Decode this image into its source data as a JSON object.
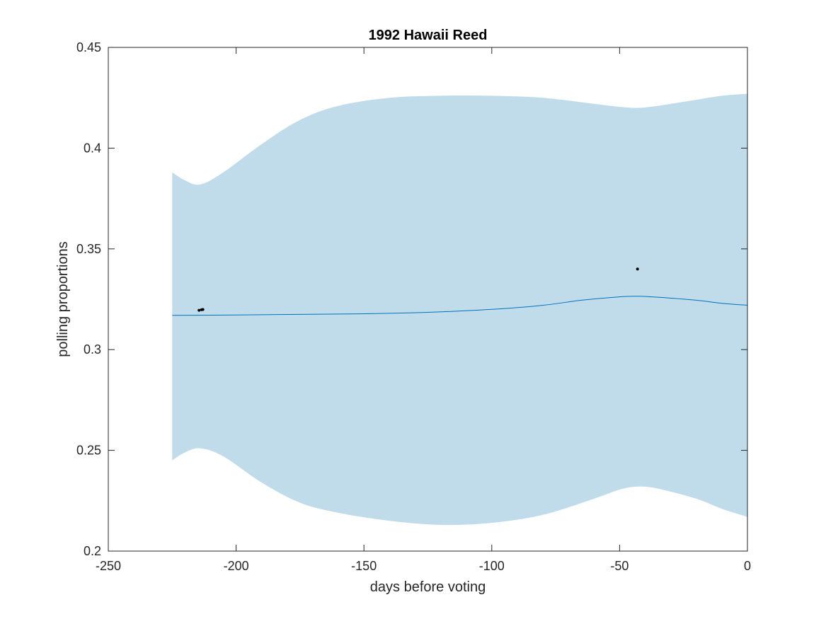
{
  "chart_data": {
    "type": "line",
    "title": "1992 Hawaii Reed",
    "xlabel": "days before voting",
    "ylabel": "polling proportions",
    "xlim": [
      -250,
      0
    ],
    "ylim": [
      0.2,
      0.45
    ],
    "xticks": [
      -250,
      -200,
      -150,
      -100,
      -50,
      0
    ],
    "yticks": [
      0.2,
      0.25,
      0.3,
      0.35,
      0.4,
      0.45
    ],
    "xtick_labels": [
      "-250",
      "-200",
      "-150",
      "-100",
      "-50",
      "0"
    ],
    "ytick_labels": [
      "0.2",
      "0.25",
      "0.3",
      "0.35",
      "0.4",
      "0.45"
    ],
    "grid": false,
    "band": {
      "x": [
        -225,
        -220,
        -214,
        -205,
        -190,
        -175,
        -160,
        -140,
        -120,
        -100,
        -80,
        -60,
        -50,
        -43,
        -35,
        -20,
        -10,
        0
      ],
      "upper": [
        0.388,
        0.384,
        0.382,
        0.388,
        0.402,
        0.414,
        0.421,
        0.425,
        0.426,
        0.426,
        0.425,
        0.422,
        0.4205,
        0.42,
        0.421,
        0.424,
        0.426,
        0.427
      ],
      "lower": [
        0.245,
        0.249,
        0.251,
        0.247,
        0.234,
        0.224,
        0.219,
        0.215,
        0.213,
        0.214,
        0.218,
        0.226,
        0.2305,
        0.232,
        0.231,
        0.226,
        0.221,
        0.217
      ],
      "color": "#c0dcea"
    },
    "series": [
      {
        "x": [
          -225,
          -200,
          -175,
          -150,
          -125,
          -100,
          -80,
          -65,
          -50,
          -43,
          -35,
          -20,
          -10,
          0
        ],
        "y": [
          0.317,
          0.3172,
          0.3175,
          0.3178,
          0.3185,
          0.32,
          0.322,
          0.3245,
          0.3262,
          0.3265,
          0.326,
          0.3245,
          0.323,
          0.322
        ],
        "color": "#0072bd"
      }
    ],
    "points": {
      "x": [
        -214.5,
        -213.5,
        -213,
        -43
      ],
      "y": [
        0.3195,
        0.3198,
        0.3199,
        0.34
      ],
      "color": "#000000"
    }
  }
}
